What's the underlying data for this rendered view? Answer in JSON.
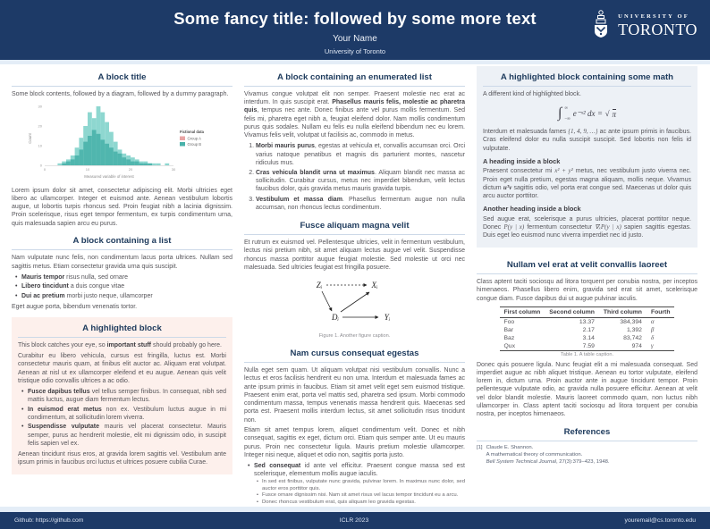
{
  "header": {
    "title": "Some fancy title: followed by some more text",
    "author": "Your Name",
    "affiliation": "University of Toronto",
    "logo": {
      "line1": "UNIVERSITY OF",
      "line2": "TORONTO"
    }
  },
  "colors": {
    "navy": "#1d3a67",
    "heading": "#1d3a5c",
    "body_text": "#56555a",
    "rule": "#ccd9e8",
    "highlight_pink": "#fdf0ec",
    "highlight_blue": "#edf1f6",
    "teal_light": "#8ed7d0",
    "teal_dark": "#49b2aa",
    "legend_pink": "#e8a4a4"
  },
  "chart_data": {
    "type": "histogram",
    "title": "",
    "xlabel": "Measured variable of interest",
    "ylabel": "Count",
    "x_ticks": [
      "0",
      "10",
      "20",
      "30"
    ],
    "y_ticks": [
      "0",
      "10",
      "20",
      "30"
    ],
    "legend": {
      "title": "Fictional data",
      "entries": [
        {
          "label": "Group A",
          "color": "#e8a4a4"
        },
        {
          "label": "Group B",
          "color": "#49b2aa"
        }
      ]
    },
    "bin_start": 0,
    "bin_width": 1,
    "series": [
      {
        "name": "Group A",
        "color": "#8ed7d0",
        "values": [
          0,
          0,
          0,
          1,
          2,
          3,
          5,
          9,
          14,
          20,
          27,
          24,
          30,
          27,
          22,
          17,
          12,
          8,
          6,
          5,
          4,
          3,
          2,
          2,
          1,
          1,
          1,
          0,
          1,
          0
        ]
      },
      {
        "name": "Group B",
        "color": "#49b2aa",
        "values": [
          0,
          0,
          0,
          0,
          1,
          2,
          3,
          5,
          8,
          12,
          15,
          18,
          16,
          13,
          11,
          9,
          7,
          6,
          4,
          3,
          2,
          2,
          1,
          1,
          1,
          0,
          0,
          0,
          0,
          0
        ]
      }
    ]
  },
  "figure1": {
    "nodes": {
      "z": "Zᵢ",
      "x": "Xᵢ",
      "d": "Dᵢ",
      "y": "Yᵢ"
    },
    "caption": "Figure 1. Another figure caption."
  },
  "col1": {
    "block1": {
      "title": "A block title",
      "intro": "Some block contents, followed by a diagram, followed by a dummy paragraph.",
      "para": "Lorem ipsum dolor sit amet, consectetur adipiscing elit. Morbi ultricies eget libero ac ullamcorper. Integer et euismod ante. Aenean vestibulum lobortis augue, ut lobortis turpis rhoncus sed. Proin feugiat nibh a lacinia dignissim. Proin scelerisque, risus eget tempor fermentum, ex turpis condimentum urna, quis malesuada sapien arcu eu purus."
    },
    "block2": {
      "title": "A block containing a list",
      "para": "Nam vulputate nunc felis, non condimentum lacus porta ultrices. Nullam sed sagittis metus. Etiam consectetur gravida urna quis suscipit.",
      "bullets": [
        {
          "lead": "Mauris tempor",
          "rest": " risus nulla, sed ornare"
        },
        {
          "lead": "Libero tincidunt",
          "rest": " a duis congue vitae"
        },
        {
          "lead": "Dui ac pretium",
          "rest": " morbi justo neque, ullamcorper"
        }
      ],
      "outro": "Eget augue porta, bibendum venenatis tortor."
    },
    "block3": {
      "title": "A highlighted block",
      "p1_pre": "This block catches your eye, so ",
      "p1_bold": "important stuff",
      "p1_post": " should probably go here.",
      "p2": "Curabitur eu libero vehicula, cursus est fringilla, luctus est. Morbi consectetur mauris quam, at finibus elit auctor ac. Aliquam erat volutpat. Aenean at nisl ut ex ullamcorper eleifend et eu augue. Aenean quis velit tristique odio convallis ultrices a ac odio.",
      "bullets": [
        {
          "lead": "Fusce dapibus tellus",
          "rest": " vel tellus semper finibus. In consequat, nibh sed mattis luctus, augue diam fermentum lectus."
        },
        {
          "lead": "In euismod erat metus",
          "rest": " non ex. Vestibulum luctus augue in mi condimentum, at sollicitudin lorem viverra."
        },
        {
          "lead": "Suspendisse vulputate",
          "rest": " mauris vel placerat consectetur. Mauris semper, purus ac hendrerit molestie, elit mi dignissim odio, in suscipit felis sapien vel ex."
        }
      ],
      "p3": "Aenean tincidunt risus eros, at gravida lorem sagittis vel. Vestibulum ante ipsum primis in faucibus orci luctus et ultrices posuere cubilia Curae."
    }
  },
  "col2": {
    "block1": {
      "title": "A block containing an enumerated list",
      "para_pre": "Vivamus congue volutpat elit non semper. Praesent molestie nec erat ac interdum. In quis suscipit erat. ",
      "para_bold": "Phasellus mauris felis, molestie ac pharetra quis",
      "para_post": ", tempus nec ante. Donec finibus ante vel purus mollis fermentum. Sed felis mi, pharetra eget nibh a, feugiat eleifend dolor. Nam mollis condimentum purus quis sodales. Nullam eu felis eu nulla eleifend bibendum nec eu lorem. Vivamus felis velit, volutpat ut facilisis ac, commodo in metus.",
      "items": [
        {
          "lead": "Morbi mauris purus",
          "rest": ", egestas at vehicula et, convallis accumsan orci. Orci varius natoque penatibus et magnis dis parturient montes, nascetur ridiculus mus."
        },
        {
          "lead": "Cras vehicula blandit urna ut maximus",
          "rest": ". Aliquam blandit nec massa ac sollicitudin. Curabitur cursus, metus nec imperdiet bibendum, velit lectus faucibus dolor, quis gravida metus mauris gravida turpis."
        },
        {
          "lead": "Vestibulum et massa diam",
          "rest": ". Phasellus fermentum augue non nulla accumsan, non rhoncus lectus condimentum."
        }
      ]
    },
    "block2": {
      "title": "Fusce aliquam magna velit",
      "para": "Et rutrum ex euismod vel. Pellentesque ultricies, velit in fermentum vestibulum, lectus nisi pretium nibh, sit amet aliquam lectus augue vel velit. Suspendisse rhoncus massa porttitor augue feugiat molestie. Sed molestie ut orci nec malesuada. Sed ultricies feugiat est fringilla posuere."
    },
    "block3": {
      "title": "Nam cursus consequat egestas",
      "p1": "Nulla eget sem quam. Ut aliquam volutpat nisi vestibulum convallis. Nunc a lectus et eros facilisis hendrerit eu non urna. Interdum et malesuada fames ac ante ipsum primis in faucibus. Etiam sit amet velit eget sem euismod tristique. Praesent enim erat, porta vel mattis sed, pharetra sed ipsum. Morbi commodo condimentum massa, tempus venenatis massa hendrerit quis. Maecenas sed porta est. Praesent mollis interdum lectus, sit amet sollicitudin risus tincidunt non.",
      "p2": "Etiam sit amet tempus lorem, aliquet condimentum velit. Donec et nibh consequat, sagittis ex eget, dictum orci. Etiam quis semper ante. Ut eu mauris purus. Proin nec consectetur ligula. Mauris pretium molestie ullamcorper. Integer nisi neque, aliquet et odio non, sagittis porta justo.",
      "b1_lead": "Sed consequat",
      "b1_rest": " id ante vel efficitur. Praesent congue massa sed est scelerisque, elementum mollis augue iaculis.",
      "sub_bullets": [
        "In sed est finibus, vulputate nunc gravida, pulvinar lorem. In maximus nunc dolor, sed auctor eros porttitor quis.",
        "Fusce ornare dignissim nisi. Nam sit amet risus vel lacus tempor tincidunt eu a arcu.",
        "Donec rhoncus vestibulum erat, quis aliquam leo gravida egestas."
      ],
      "b2_lead": "Sed luctus, elit sit amet",
      "b2_rest": " dictum maximus, diam dolor faucibus purus, sed lobortis justo erat id turpis.",
      "b3_lead": "Pellentesque facilisis dolor in leo",
      "b3_rest": " bibendum congue. Maecenas congue finibus justo, vitae eleifend urna facilisis at."
    }
  },
  "col3": {
    "block1": {
      "title": "A highlighted block containing some math",
      "p1": "A different kind of highlighted block.",
      "equation": {
        "integral": "∫",
        "upper": "∞",
        "lower": "−∞",
        "body": "e⁻ˣ² dx",
        "equals": "=",
        "sqrt": "√",
        "radicand": "π"
      },
      "p2_pre": "Interdum et malesuada fames ",
      "p2_math": "{1, 4, 9, …}",
      "p2_post": " ac ante ipsum primis in faucibus. Cras eleifend dolor eu nulla suscipit suscipit. Sed lobortis non felis id vulputate.",
      "sub1": "A heading inside a block",
      "p3_pre": "Praesent consectetur mi ",
      "p3_math1": "x² + y²",
      "p3_mid": " metus, nec vestibulum justo viverra nec. Proin eget nulla pretium, egestas magna aliquam, mollis neque. Vivamus dictum ",
      "p3_math2": "uᵀv",
      "p3_post": " sagittis odio, vel porta erat congue sed. Maecenas ut dolor quis arcu auctor porttitor.",
      "sub2": "Another heading inside a block",
      "p4_pre": "Sed augue erat, scelerisque a purus ultricies, placerat porttitor neque. Donec ",
      "p4_math1": "P(y | x)",
      "p4_mid": " fermentum consectetur ",
      "p4_math2": "∇ₓP(y | x)",
      "p4_post": " sapien sagittis egestas. Duis eget leo euismod nunc viverra imperdiet nec id justo."
    },
    "block2": {
      "title": "Nullam vel erat at velit convallis laoreet",
      "p1": "Class aptent taciti sociosqu ad litora torquent per conubia nostra, per inceptos himenaeos. Phasellus libero enim, gravida sed erat sit amet, scelerisque congue diam. Fusce dapibus dui ut augue pulvinar iaculis.",
      "table": {
        "headers": [
          "First column",
          "Second column",
          "Third column",
          "Fourth"
        ],
        "rows": [
          [
            "Foo",
            "13.37",
            "384,394",
            "α"
          ],
          [
            "Bar",
            "2.17",
            "1,392",
            "β"
          ],
          [
            "Baz",
            "3.14",
            "83,742",
            "δ"
          ],
          [
            "Qux",
            "7.59",
            "974",
            "γ"
          ]
        ],
        "caption": "Table 1. A table caption."
      },
      "p2": "Donec quis posuere ligula. Nunc feugiat elit a mi malesuada consequat. Sed imperdiet augue ac nibh aliquet tristique. Aenean eu tortor vulputate, eleifend lorem in, dictum urna. Proin auctor ante in augue tincidunt tempor. Proin pellentesque vulputate odio, ac gravida nulla posuere efficitur. Aenean at velit vel dolor blandit molestie. Mauris laoreet commodo quam, non luctus nibh ullamcorper in. Class aptent taciti sociosqu ad litora torquent per conubia nostra, per inceptos himenaeos."
    },
    "block3": {
      "title": "References",
      "ref_num": "[1]",
      "ref_l1": "Claude E. Shannon.",
      "ref_l2": "A mathematical theory of communication.",
      "ref_journal": "Bell System Technical Journal",
      "ref_tail": ", 27(3):379–423, 1948."
    }
  },
  "footer": {
    "left": "Github: https://github.com",
    "center": "ICLR 2023",
    "right": "youremail@cs.toronto.edu"
  }
}
